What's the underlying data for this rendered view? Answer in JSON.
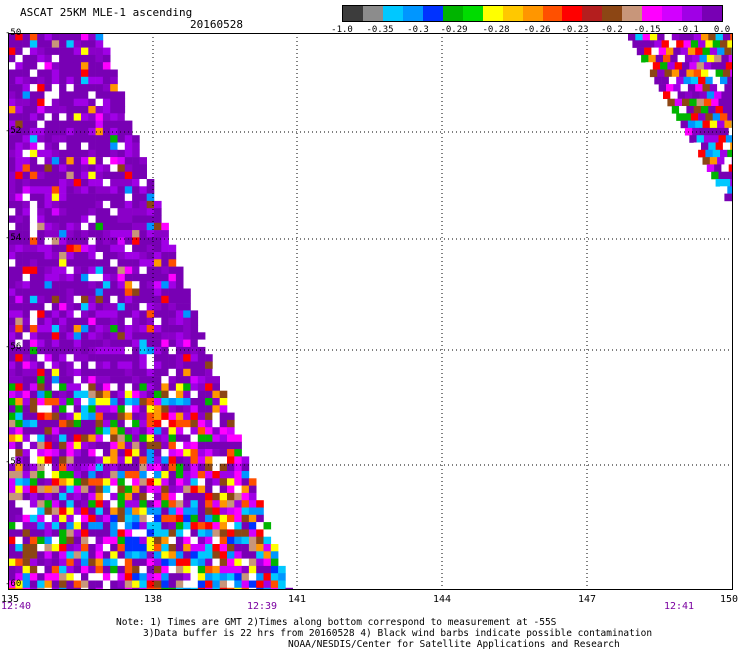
{
  "header": {
    "title": "ASCAT 25KM MLE-1 ascending",
    "date": "20160528"
  },
  "colorbar": {
    "colors": [
      "#3c3c3c",
      "#8c8c8c",
      "#00c8ff",
      "#0096ff",
      "#0032ff",
      "#00b400",
      "#00dc00",
      "#ffff00",
      "#ffc800",
      "#ff9600",
      "#ff5000",
      "#ff0000",
      "#b41e1e",
      "#8c4614",
      "#c8967a",
      "#ff00ff",
      "#d200ff",
      "#a000e6",
      "#7800b4"
    ],
    "labels": [
      "-1.0",
      "-0.35",
      "-0.3",
      "-0.29",
      "-0.28",
      "-0.26",
      "-0.23",
      "-0.2",
      "-0.15",
      "-0.1",
      "0.0"
    ]
  },
  "axes": {
    "lon_labels": [
      "135",
      "138",
      "141",
      "144",
      "147",
      "150"
    ],
    "lat_labels": [
      "-50",
      "-52",
      "-54",
      "-56",
      "-58",
      "-60"
    ],
    "time_labels": [
      "12:40",
      "12:39",
      "12:41"
    ],
    "lon_range": [
      135,
      150
    ],
    "lat_range": [
      -60,
      -50
    ]
  },
  "notes": [
    "Note: 1) Times are GMT 2)Times along bottom correspond to measurement at -55S",
    "3)Data buffer is 22 hrs from 20160528 4) Black wind barbs indicate possible contamination",
    "NOAA/NESDIS/Center for Satellite Applications and Research"
  ]
}
